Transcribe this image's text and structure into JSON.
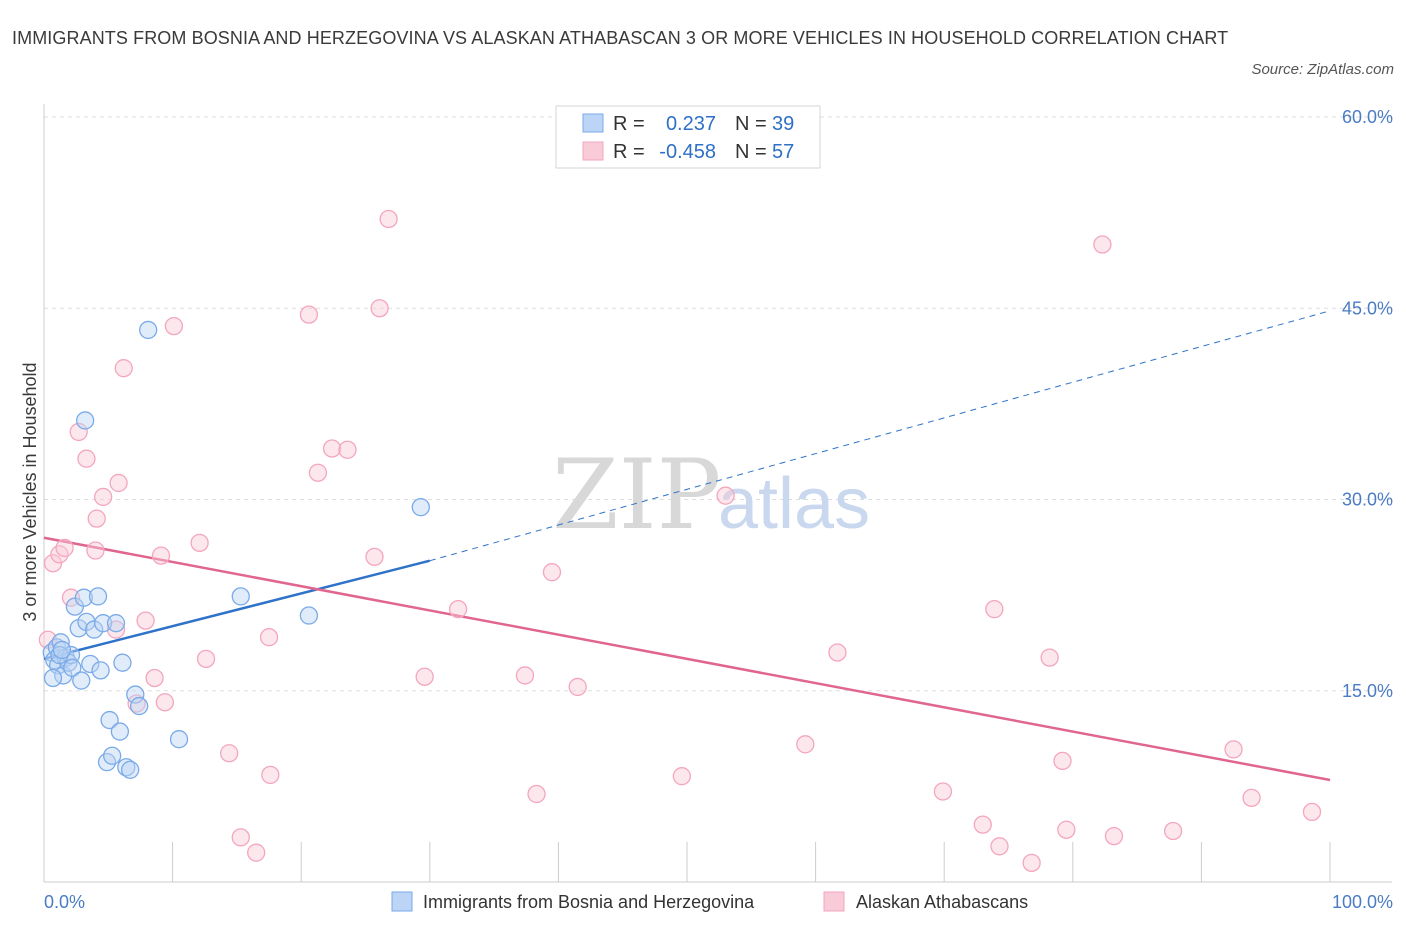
{
  "title": "IMMIGRANTS FROM BOSNIA AND HERZEGOVINA VS ALASKAN ATHABASCAN 3 OR MORE VEHICLES IN HOUSEHOLD CORRELATION CHART",
  "source": "Source: ZipAtlas.com",
  "watermark": {
    "zip": "ZIP",
    "atlas": "atlas"
  },
  "legend": {
    "r_label": "R =",
    "n_label": "N =",
    "series1": {
      "r": "0.237",
      "n": "39"
    },
    "series2": {
      "r": "-0.458",
      "n": "57"
    }
  },
  "chart_data": {
    "type": "scatter",
    "ylabel": "3 or more Vehicles in Household",
    "xlabel": "",
    "xlim": [
      0,
      100
    ],
    "ylim": [
      0,
      60
    ],
    "x_tick_labels": [
      "0.0%",
      "100.0%"
    ],
    "y_ticks": [
      15,
      30,
      45,
      60
    ],
    "y_tick_labels": [
      "15.0%",
      "30.0%",
      "45.0%",
      "60.0%"
    ],
    "grid": true,
    "legend_position": "top-center",
    "series": [
      {
        "name": "Immigrants from Bosnia and Herzegovina",
        "color": "#7aaae8",
        "line_color": "#2e73c9",
        "trend": {
          "x0": 0,
          "y0": 17.5,
          "x1": 30,
          "y1": 25.2,
          "dashed_to_x": 100,
          "dashed_to_y": 44.8
        },
        "points": [
          [
            0.6,
            18.0
          ],
          [
            0.8,
            17.4
          ],
          [
            1.0,
            18.4
          ],
          [
            1.1,
            17.0
          ],
          [
            1.3,
            18.8
          ],
          [
            1.5,
            16.2
          ],
          [
            1.7,
            17.6
          ],
          [
            1.9,
            17.2
          ],
          [
            2.1,
            17.8
          ],
          [
            2.2,
            16.8
          ],
          [
            2.4,
            21.6
          ],
          [
            2.7,
            19.9
          ],
          [
            2.9,
            15.8
          ],
          [
            3.1,
            22.3
          ],
          [
            3.3,
            20.4
          ],
          [
            3.6,
            17.1
          ],
          [
            3.9,
            19.8
          ],
          [
            4.2,
            22.4
          ],
          [
            4.4,
            16.6
          ],
          [
            4.6,
            20.3
          ],
          [
            4.9,
            9.4
          ],
          [
            5.1,
            12.7
          ],
          [
            5.3,
            9.9
          ],
          [
            5.6,
            20.3
          ],
          [
            5.9,
            11.8
          ],
          [
            6.1,
            17.2
          ],
          [
            6.4,
            9.0
          ],
          [
            6.7,
            8.8
          ],
          [
            7.1,
            14.7
          ],
          [
            7.4,
            13.8
          ],
          [
            8.1,
            43.3
          ],
          [
            10.5,
            11.2
          ],
          [
            15.3,
            22.4
          ],
          [
            20.6,
            20.9
          ],
          [
            29.3,
            29.4
          ],
          [
            3.2,
            36.2
          ],
          [
            1.2,
            17.8
          ],
          [
            1.4,
            18.2
          ],
          [
            0.7,
            16.0
          ]
        ]
      },
      {
        "name": "Alaskan Athabascans",
        "color": "#f4a6bf",
        "line_color": "#e0668f",
        "trend": {
          "x0": 0,
          "y0": 27.0,
          "x1": 100,
          "y1": 8.0
        },
        "points": [
          [
            0.3,
            19.0
          ],
          [
            0.7,
            25.0
          ],
          [
            1.2,
            25.7
          ],
          [
            1.6,
            26.2
          ],
          [
            2.1,
            22.3
          ],
          [
            2.7,
            35.3
          ],
          [
            3.3,
            33.2
          ],
          [
            4.0,
            26.0
          ],
          [
            4.1,
            28.5
          ],
          [
            4.6,
            30.2
          ],
          [
            5.6,
            19.8
          ],
          [
            5.8,
            31.3
          ],
          [
            6.2,
            40.3
          ],
          [
            7.2,
            14.0
          ],
          [
            7.9,
            20.5
          ],
          [
            8.6,
            16.0
          ],
          [
            9.1,
            25.6
          ],
          [
            9.4,
            14.1
          ],
          [
            10.1,
            43.6
          ],
          [
            12.1,
            26.6
          ],
          [
            12.6,
            17.5
          ],
          [
            14.4,
            10.1
          ],
          [
            15.3,
            3.5
          ],
          [
            16.5,
            2.3
          ],
          [
            17.5,
            19.2
          ],
          [
            17.6,
            8.4
          ],
          [
            20.6,
            44.5
          ],
          [
            21.3,
            32.1
          ],
          [
            22.4,
            34.0
          ],
          [
            23.6,
            33.9
          ],
          [
            25.7,
            25.5
          ],
          [
            26.1,
            45.0
          ],
          [
            26.8,
            52.0
          ],
          [
            29.6,
            16.1
          ],
          [
            32.2,
            21.4
          ],
          [
            37.4,
            16.2
          ],
          [
            38.3,
            6.9
          ],
          [
            39.5,
            24.3
          ],
          [
            41.5,
            15.3
          ],
          [
            49.6,
            8.3
          ],
          [
            53.0,
            30.3
          ],
          [
            59.2,
            10.8
          ],
          [
            61.7,
            18.0
          ],
          [
            69.9,
            7.1
          ],
          [
            73.0,
            4.5
          ],
          [
            73.9,
            21.4
          ],
          [
            74.3,
            2.8
          ],
          [
            76.8,
            1.5
          ],
          [
            78.2,
            17.6
          ],
          [
            79.2,
            9.5
          ],
          [
            79.5,
            4.1
          ],
          [
            83.2,
            3.6
          ],
          [
            82.3,
            50.0
          ],
          [
            87.8,
            4.0
          ],
          [
            92.5,
            10.4
          ],
          [
            93.9,
            6.6
          ],
          [
            98.6,
            5.5
          ]
        ]
      }
    ]
  }
}
